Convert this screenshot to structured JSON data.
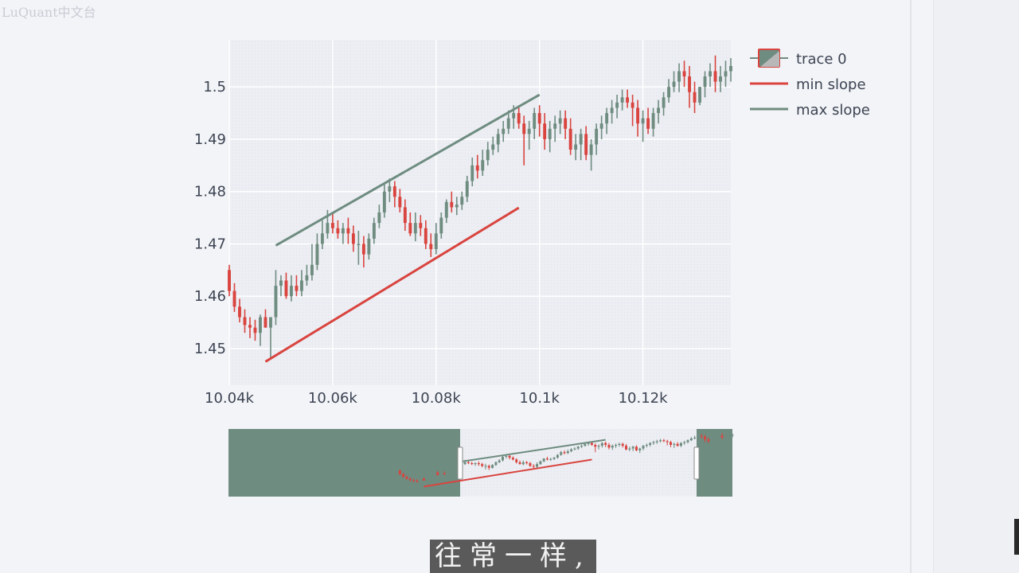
{
  "watermark": "LuQuant中文台",
  "subtitle": "往常一样,",
  "colors": {
    "increasing": "#6f8c80",
    "decreasing": "#d9443f",
    "min_slope": "#d9443f",
    "max_slope": "#6f8c80",
    "plot_bg": "#eceef3",
    "grid": "#ffffff",
    "range_mask": "#6f8c80"
  },
  "chart_data": {
    "type": "candlestick",
    "title": "",
    "xlabel": "",
    "ylabel": "",
    "xlim": [
      10040,
      10137
    ],
    "ylim": [
      1.443,
      1.509
    ],
    "x_ticks": [
      {
        "value": 10040,
        "label": "10.04k"
      },
      {
        "value": 10060,
        "label": "10.06k"
      },
      {
        "value": 10080,
        "label": "10.08k"
      },
      {
        "value": 10100,
        "label": "10.1k"
      },
      {
        "value": 10120,
        "label": "10.12k"
      }
    ],
    "y_ticks": [
      {
        "value": 1.45,
        "label": "1.45"
      },
      {
        "value": 1.46,
        "label": "1.46"
      },
      {
        "value": 1.47,
        "label": "1.47"
      },
      {
        "value": 1.48,
        "label": "1.48"
      },
      {
        "value": 1.49,
        "label": "1.49"
      },
      {
        "value": 1.5,
        "label": "1.5"
      }
    ],
    "grid": true,
    "legend": {
      "placement": "top-right",
      "entries": [
        "trace 0",
        "min slope",
        "max slope"
      ]
    },
    "series": [
      {
        "name": "trace 0",
        "type": "candlestick",
        "x": [
          10040,
          10041,
          10042,
          10043,
          10044,
          10045,
          10046,
          10047,
          10048,
          10049,
          10050,
          10051,
          10052,
          10053,
          10054,
          10055,
          10056,
          10057,
          10058,
          10059,
          10060,
          10061,
          10062,
          10063,
          10064,
          10065,
          10066,
          10067,
          10068,
          10069,
          10070,
          10071,
          10072,
          10073,
          10074,
          10075,
          10076,
          10077,
          10078,
          10079,
          10080,
          10081,
          10082,
          10083,
          10084,
          10085,
          10086,
          10087,
          10088,
          10089,
          10090,
          10091,
          10092,
          10093,
          10094,
          10095,
          10096,
          10097,
          10098,
          10099,
          10100,
          10101,
          10102,
          10103,
          10104,
          10105,
          10106,
          10107,
          10108,
          10109,
          10110,
          10111,
          10112,
          10113,
          10114,
          10115,
          10116,
          10117,
          10118,
          10119,
          10120,
          10121,
          10122,
          10123,
          10124,
          10125,
          10126,
          10127,
          10128,
          10129,
          10130,
          10131,
          10132,
          10133,
          10134,
          10135,
          10136,
          10137
        ],
        "open": [
          1.465,
          1.461,
          1.458,
          1.456,
          1.4545,
          1.454,
          1.453,
          1.456,
          1.454,
          1.456,
          1.462,
          1.463,
          1.46,
          1.462,
          1.461,
          1.463,
          1.464,
          1.466,
          1.47,
          1.472,
          1.474,
          1.473,
          1.472,
          1.473,
          1.472,
          1.47,
          1.47,
          1.468,
          1.471,
          1.474,
          1.476,
          1.48,
          1.481,
          1.479,
          1.477,
          1.474,
          1.472,
          1.474,
          1.473,
          1.47,
          1.469,
          1.472,
          1.475,
          1.478,
          1.477,
          1.4775,
          1.479,
          1.482,
          1.485,
          1.484,
          1.486,
          1.488,
          1.489,
          1.491,
          1.492,
          1.494,
          1.495,
          1.493,
          1.491,
          1.492,
          1.495,
          1.493,
          1.49,
          1.492,
          1.493,
          1.494,
          1.492,
          1.488,
          1.489,
          1.491,
          1.487,
          1.489,
          1.492,
          1.493,
          1.495,
          1.496,
          1.497,
          1.498,
          1.497,
          1.496,
          1.493,
          1.494,
          1.492,
          1.495,
          1.496,
          1.498,
          1.5,
          1.501,
          1.503,
          1.502,
          1.499,
          1.497,
          1.5,
          1.502,
          1.503,
          1.501,
          1.502,
          1.503
        ],
        "high": [
          1.466,
          1.4625,
          1.4595,
          1.4575,
          1.456,
          1.4555,
          1.4565,
          1.4575,
          1.456,
          1.465,
          1.464,
          1.4645,
          1.464,
          1.464,
          1.465,
          1.466,
          1.47,
          1.472,
          1.4745,
          1.4765,
          1.476,
          1.4745,
          1.474,
          1.475,
          1.4735,
          1.4725,
          1.4715,
          1.472,
          1.475,
          1.4775,
          1.4815,
          1.4825,
          1.482,
          1.4805,
          1.4785,
          1.476,
          1.476,
          1.4755,
          1.4745,
          1.472,
          1.474,
          1.476,
          1.4785,
          1.48,
          1.479,
          1.48,
          1.483,
          1.4865,
          1.487,
          1.488,
          1.4895,
          1.4905,
          1.492,
          1.4935,
          1.4955,
          1.4965,
          1.4965,
          1.4945,
          1.4935,
          1.496,
          1.4965,
          1.495,
          1.4935,
          1.4945,
          1.4955,
          1.4955,
          1.494,
          1.491,
          1.492,
          1.4925,
          1.49,
          1.493,
          1.4945,
          1.496,
          1.4975,
          1.4985,
          1.4995,
          1.4995,
          1.4985,
          1.4975,
          1.4955,
          1.496,
          1.496,
          1.4975,
          1.499,
          1.5015,
          1.503,
          1.5045,
          1.505,
          1.504,
          1.501,
          1.5,
          1.503,
          1.5045,
          1.506,
          1.504,
          1.505,
          1.5055
        ],
        "low": [
          1.46,
          1.457,
          1.455,
          1.453,
          1.452,
          1.4515,
          1.4505,
          1.454,
          1.448,
          1.4545,
          1.46,
          1.4595,
          1.459,
          1.46,
          1.46,
          1.462,
          1.463,
          1.465,
          1.469,
          1.471,
          1.472,
          1.471,
          1.47,
          1.47,
          1.4685,
          1.466,
          1.4655,
          1.467,
          1.47,
          1.473,
          1.475,
          1.478,
          1.477,
          1.476,
          1.4725,
          1.4715,
          1.4705,
          1.4715,
          1.469,
          1.4675,
          1.468,
          1.471,
          1.474,
          1.476,
          1.4755,
          1.4765,
          1.478,
          1.481,
          1.4825,
          1.483,
          1.485,
          1.487,
          1.4875,
          1.4895,
          1.491,
          1.492,
          1.492,
          1.485,
          1.488,
          1.49,
          1.4905,
          1.488,
          1.4875,
          1.4895,
          1.491,
          1.49,
          1.487,
          1.486,
          1.486,
          1.486,
          1.484,
          1.487,
          1.49,
          1.491,
          1.493,
          1.494,
          1.4955,
          1.496,
          1.4925,
          1.4905,
          1.4895,
          1.491,
          1.4905,
          1.493,
          1.4945,
          1.497,
          1.499,
          1.499,
          1.5,
          1.496,
          1.495,
          1.4965,
          1.498,
          1.5,
          1.499,
          1.499,
          1.5,
          1.501
        ],
        "close": [
          1.461,
          1.458,
          1.456,
          1.4545,
          1.454,
          1.453,
          1.456,
          1.454,
          1.456,
          1.462,
          1.463,
          1.46,
          1.462,
          1.461,
          1.463,
          1.464,
          1.466,
          1.47,
          1.472,
          1.474,
          1.473,
          1.472,
          1.473,
          1.472,
          1.47,
          1.47,
          1.468,
          1.471,
          1.474,
          1.476,
          1.48,
          1.481,
          1.479,
          1.477,
          1.474,
          1.472,
          1.474,
          1.473,
          1.47,
          1.469,
          1.472,
          1.475,
          1.478,
          1.477,
          1.4775,
          1.479,
          1.482,
          1.485,
          1.484,
          1.486,
          1.488,
          1.489,
          1.491,
          1.492,
          1.494,
          1.495,
          1.493,
          1.491,
          1.492,
          1.495,
          1.493,
          1.49,
          1.492,
          1.493,
          1.494,
          1.492,
          1.488,
          1.489,
          1.491,
          1.487,
          1.489,
          1.492,
          1.493,
          1.495,
          1.496,
          1.497,
          1.498,
          1.497,
          1.496,
          1.493,
          1.494,
          1.492,
          1.495,
          1.496,
          1.498,
          1.5,
          1.501,
          1.503,
          1.502,
          1.499,
          1.497,
          1.5,
          1.502,
          1.503,
          1.501,
          1.502,
          1.503,
          1.504
        ]
      },
      {
        "name": "min slope",
        "type": "line",
        "x": [
          10047,
          10096
        ],
        "y": [
          1.4475,
          1.4769
        ]
      },
      {
        "name": "max slope",
        "type": "line",
        "x": [
          10049,
          10100
        ],
        "y": [
          1.4697,
          1.4985
        ]
      }
    ],
    "range_slider": {
      "visible": true,
      "selected_x": [
        10040,
        10137
      ]
    }
  }
}
